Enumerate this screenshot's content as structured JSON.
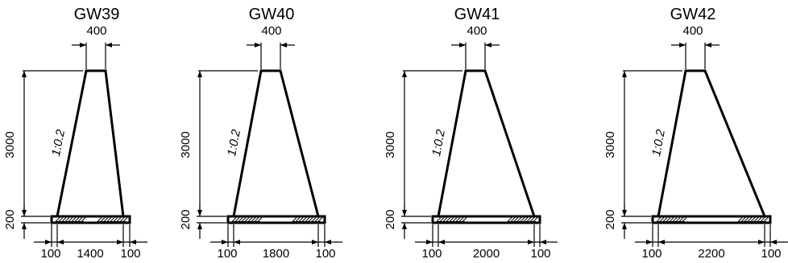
{
  "walls": [
    {
      "title": "GW39",
      "top": "400",
      "height": "3000",
      "footing": "200",
      "slope": "1:0.2",
      "left_offset": "100",
      "base": "1400",
      "right_offset": "100"
    },
    {
      "title": "GW40",
      "top": "400",
      "height": "3000",
      "footing": "200",
      "slope": "1:0.2",
      "left_offset": "100",
      "base": "1800",
      "right_offset": "100"
    },
    {
      "title": "GW41",
      "top": "400",
      "height": "3000",
      "footing": "200",
      "slope": "1:0.2",
      "left_offset": "100",
      "base": "2000",
      "right_offset": "100"
    },
    {
      "title": "GW42",
      "top": "400",
      "height": "3000",
      "footing": "200",
      "slope": "1:0.2",
      "left_offset": "100",
      "base": "2200",
      "right_offset": "100"
    }
  ]
}
